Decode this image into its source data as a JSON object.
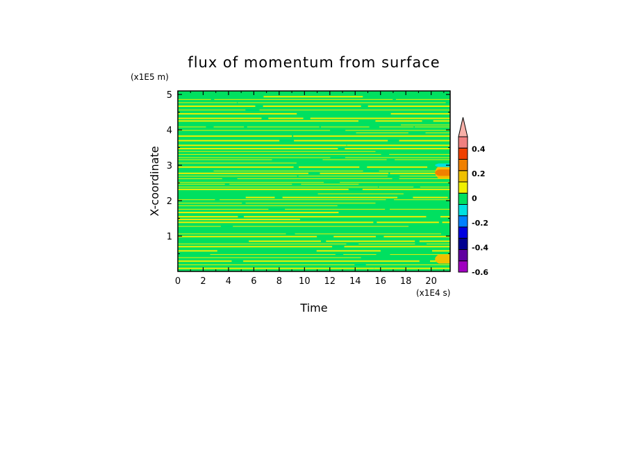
{
  "chart_data": {
    "type": "heatmap",
    "title": "flux of momentum from surface",
    "xlabel": "Time",
    "ylabel": "X-coordinate",
    "x_unit": "(x1E4 s)",
    "y_unit": "(x1E5 m)",
    "xlim": [
      0,
      21.5
    ],
    "ylim": [
      0,
      5.1
    ],
    "x_ticks": [
      0,
      2,
      4,
      6,
      8,
      10,
      12,
      14,
      16,
      18,
      20
    ],
    "y_ticks": [
      1,
      2,
      3,
      4,
      5
    ],
    "x_tick_labels": [
      "0",
      "2",
      "4",
      "6",
      "8",
      "10",
      "12",
      "14",
      "16",
      "18",
      "20"
    ],
    "y_tick_labels": [
      "1",
      "2",
      "3",
      "4",
      "5"
    ],
    "colorbar": {
      "levels": [
        -0.6,
        -0.5,
        -0.4,
        -0.3,
        -0.2,
        -0.1,
        0,
        0.1,
        0.2,
        0.3,
        0.4,
        0.5
      ],
      "colors": [
        "#a000c0",
        "#6000a0",
        "#000090",
        "#0000e0",
        "#0080ff",
        "#00e0e0",
        "#00e060",
        "#f0f000",
        "#f0c000",
        "#f08000",
        "#f04000",
        "#f08080"
      ],
      "extend_color": "#f8b0a8",
      "tick_values": [
        -0.6,
        -0.4,
        -0.2,
        0,
        0.2,
        0.4
      ],
      "tick_labels": [
        "-0.6",
        "-0.4",
        "-0.2",
        "0",
        "0.2",
        "0.4"
      ]
    },
    "field_description": "Horizontal bands alternating between 0 to 0.1 (green) and 0.1 to 0.2 (yellow) across all times; small positive/negative features near time 20-21.5 around X 2.6-3.0 and X 0.2-0.5"
  }
}
